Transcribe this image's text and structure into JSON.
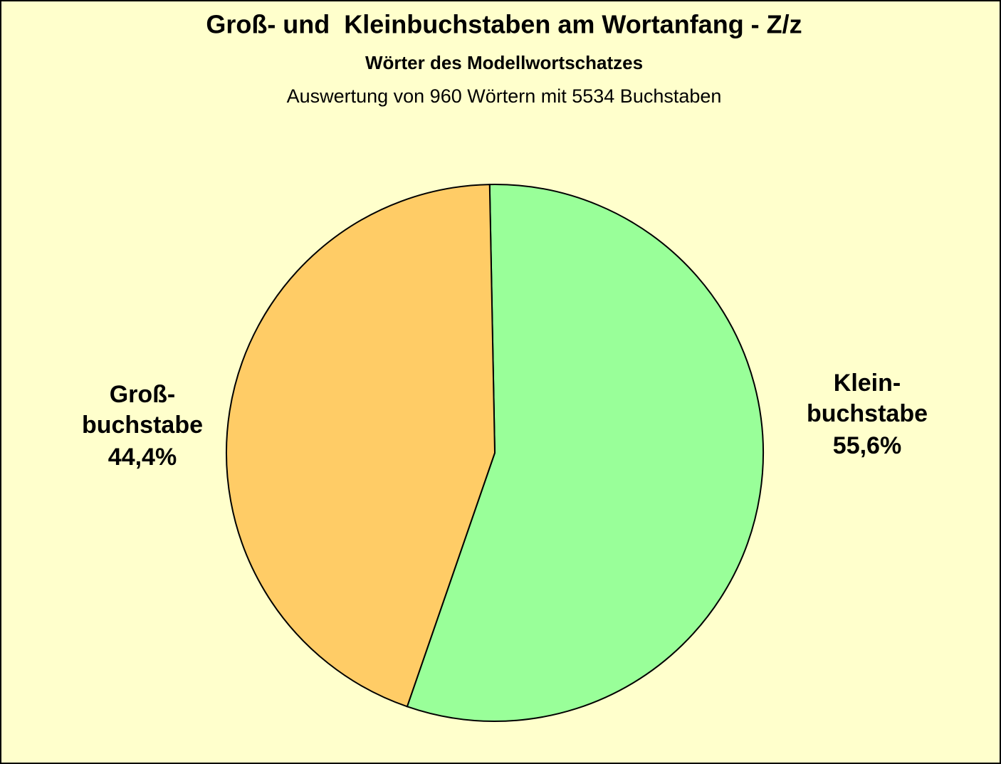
{
  "chart_data": {
    "type": "pie",
    "title": "Groß- und  Kleinbuchstaben am Wortanfang - Z/z",
    "subtitle": "Wörter des Modellwortschatzes",
    "note": "Auswertung von 960 Wörtern mit 5534 Buchstaben",
    "categories": [
      "Klein-\nbuchstabe",
      "Groß-\nbuchstabe"
    ],
    "values": [
      55.6,
      44.4
    ],
    "value_labels": [
      "55,6%",
      "44,4%"
    ],
    "colors": [
      "#99ff99",
      "#ffcc66"
    ]
  }
}
